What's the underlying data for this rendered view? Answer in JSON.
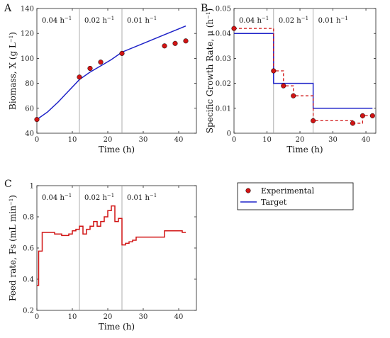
{
  "chart_data": [
    {
      "panel": "A",
      "type": "line",
      "xlabel": "Time (h)",
      "ylabel": "Biomass, X (g L",
      "ylabel_sup": "−1",
      "ylabel_end": ")",
      "xlim": [
        0,
        45
      ],
      "ylim": [
        40,
        140
      ],
      "xticks": [
        0,
        10,
        20,
        30,
        40
      ],
      "yticks": [
        40,
        60,
        80,
        100,
        120,
        140
      ],
      "phase_lines": [
        12,
        24
      ],
      "phase_labels": [
        {
          "base": "0.04 h",
          "sup": "−1"
        },
        {
          "base": "0.02 h",
          "sup": "−1"
        },
        {
          "base": "0.01 h",
          "sup": "−1"
        }
      ],
      "series": [
        {
          "name": "Target",
          "kind": "line",
          "x": [
            0,
            3,
            6,
            9,
            12,
            15,
            18,
            21,
            24,
            30,
            36,
            42
          ],
          "y": [
            51,
            57,
            65,
            74,
            83,
            89,
            94,
            99,
            105,
            112,
            119,
            126
          ]
        },
        {
          "name": "Experimental",
          "kind": "points",
          "x": [
            0,
            12,
            15,
            18,
            24,
            36,
            39,
            42
          ],
          "y": [
            51,
            85,
            92,
            97,
            104,
            110,
            112,
            114
          ]
        }
      ]
    },
    {
      "panel": "B",
      "type": "line",
      "xlabel": "Time (h)",
      "ylabel": "Specific Growth Rate, μ (h",
      "ylabel_sup": "−1",
      "ylabel_end": ")",
      "xlim": [
        0,
        43
      ],
      "ylim": [
        0,
        0.05
      ],
      "xticks": [
        0,
        10,
        20,
        30,
        40
      ],
      "yticks": [
        0,
        0.01,
        0.02,
        0.03,
        0.04,
        0.05
      ],
      "phase_lines": [
        12,
        24
      ],
      "phase_labels": [
        {
          "base": "0.04 h",
          "sup": "−1"
        },
        {
          "base": "0.02 h",
          "sup": "−1"
        },
        {
          "base": "0.01 h",
          "sup": "−1"
        }
      ],
      "series": [
        {
          "name": "Target",
          "kind": "step",
          "x": [
            0,
            12,
            12,
            24,
            24,
            42
          ],
          "y": [
            0.04,
            0.04,
            0.02,
            0.02,
            0.01,
            0.01
          ]
        },
        {
          "name": "Experimental",
          "kind": "points-dashed-step",
          "x": [
            0,
            12,
            15,
            18,
            24,
            36,
            39,
            42
          ],
          "y": [
            0.042,
            0.025,
            0.019,
            0.015,
            0.005,
            0.004,
            0.007,
            0.007
          ]
        }
      ]
    },
    {
      "panel": "C",
      "type": "line",
      "xlabel": "Time (h)",
      "ylabel": "Feed rate, Fs (mL min",
      "ylabel_sup": "−1",
      "ylabel_end": ")",
      "xlim": [
        0,
        45
      ],
      "ylim": [
        0.2,
        1
      ],
      "xticks": [
        0,
        10,
        20,
        30,
        40
      ],
      "yticks": [
        0.2,
        0.4,
        0.6,
        0.8,
        1
      ],
      "phase_lines": [
        12,
        24
      ],
      "phase_labels": [
        {
          "base": "0.04 h",
          "sup": "−1"
        },
        {
          "base": "0.02 h",
          "sup": "−1"
        },
        {
          "base": "0.01 h",
          "sup": "−1"
        }
      ],
      "series": [
        {
          "name": "Feed rate",
          "kind": "step",
          "x": [
            0,
            0.5,
            0.5,
            1.5,
            1.5,
            5,
            5,
            7,
            7,
            9,
            9,
            10,
            10,
            11,
            11,
            12,
            12,
            13,
            13,
            14,
            14,
            15,
            15,
            16,
            16,
            17,
            17,
            18,
            18,
            19,
            19,
            20,
            20,
            21,
            21,
            22,
            22,
            23,
            23,
            24,
            24,
            25,
            25,
            26,
            26,
            27,
            27,
            28,
            28,
            36,
            36,
            41,
            41,
            42
          ],
          "y": [
            0.36,
            0.36,
            0.58,
            0.58,
            0.7,
            0.7,
            0.69,
            0.69,
            0.68,
            0.68,
            0.69,
            0.69,
            0.71,
            0.71,
            0.72,
            0.72,
            0.74,
            0.74,
            0.69,
            0.69,
            0.72,
            0.72,
            0.74,
            0.74,
            0.77,
            0.77,
            0.74,
            0.74,
            0.77,
            0.77,
            0.8,
            0.8,
            0.84,
            0.84,
            0.87,
            0.87,
            0.77,
            0.77,
            0.79,
            0.79,
            0.62,
            0.62,
            0.63,
            0.63,
            0.64,
            0.64,
            0.65,
            0.65,
            0.67,
            0.67,
            0.71,
            0.71,
            0.7,
            0.7
          ]
        }
      ]
    }
  ],
  "legend": {
    "experimental": "Experimental",
    "target": "Target"
  },
  "colors": {
    "target": "#1f23c8",
    "experimental": "#d11414",
    "axis": "#222222",
    "phase_line": "#9a9a9a"
  }
}
